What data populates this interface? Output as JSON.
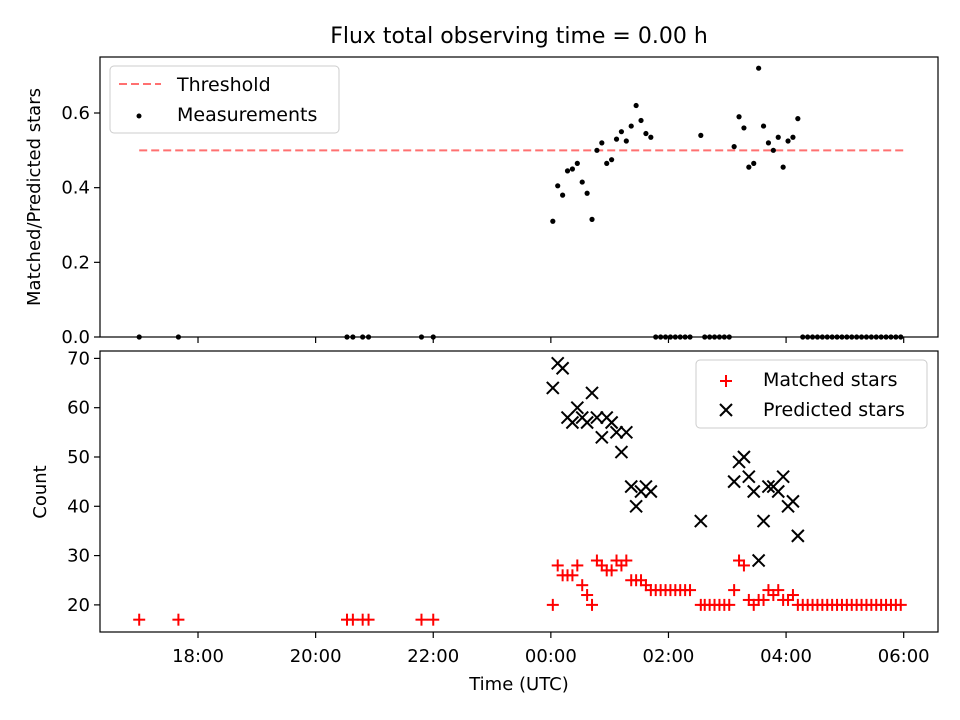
{
  "title": "Flux total observing time = 0.00 h",
  "xlabel": "Time (UTC)",
  "x_tick_labels": [
    "18:00",
    "20:00",
    "22:00",
    "00:00",
    "02:00",
    "04:00",
    "06:00"
  ],
  "chart_data": [
    {
      "type": "scatter",
      "panel": "top",
      "ylabel": "Matched/Predicted stars",
      "xlim": [
        "2023-01-01 16:20",
        "2023-01-02 06:35"
      ],
      "ylim": [
        0,
        0.75
      ],
      "y_ticks": [
        0.0,
        0.2,
        0.4,
        0.6
      ],
      "y_tick_labels": [
        "0.0",
        "0.2",
        "0.4",
        "0.6"
      ],
      "legend": "top-left",
      "threshold": {
        "name": "Threshold",
        "value": 0.5,
        "x_range": [
          "2023-01-01 17:00",
          "2023-01-02 06:00"
        ],
        "color": "#ff7070",
        "style": "dashed"
      },
      "series": [
        {
          "name": "Measurements",
          "color": "#000000",
          "marker": "dot",
          "points": [
            [
              "2023-01-01 17:00",
              0.0
            ],
            [
              "2023-01-01 17:40",
              0.0
            ],
            [
              "2023-01-01 20:32",
              0.0
            ],
            [
              "2023-01-01 20:38",
              0.0
            ],
            [
              "2023-01-01 20:48",
              0.0
            ],
            [
              "2023-01-01 20:54",
              0.0
            ],
            [
              "2023-01-01 21:48",
              0.0
            ],
            [
              "2023-01-01 22:00",
              0.0
            ],
            [
              "2023-01-02 00:02",
              0.31
            ],
            [
              "2023-01-02 00:07",
              0.405
            ],
            [
              "2023-01-02 00:12",
              0.38
            ],
            [
              "2023-01-02 00:17",
              0.445
            ],
            [
              "2023-01-02 00:22",
              0.45
            ],
            [
              "2023-01-02 00:27",
              0.465
            ],
            [
              "2023-01-02 00:32",
              0.415
            ],
            [
              "2023-01-02 00:37",
              0.385
            ],
            [
              "2023-01-02 00:42",
              0.315
            ],
            [
              "2023-01-02 00:47",
              0.5
            ],
            [
              "2023-01-02 00:52",
              0.52
            ],
            [
              "2023-01-02 00:57",
              0.465
            ],
            [
              "2023-01-02 01:02",
              0.475
            ],
            [
              "2023-01-02 01:07",
              0.53
            ],
            [
              "2023-01-02 01:12",
              0.55
            ],
            [
              "2023-01-02 01:17",
              0.525
            ],
            [
              "2023-01-02 01:22",
              0.565
            ],
            [
              "2023-01-02 01:27",
              0.62
            ],
            [
              "2023-01-02 01:32",
              0.58
            ],
            [
              "2023-01-02 01:37",
              0.545
            ],
            [
              "2023-01-02 01:42",
              0.535
            ],
            [
              "2023-01-02 01:47",
              0.0
            ],
            [
              "2023-01-02 01:52",
              0.0
            ],
            [
              "2023-01-02 01:57",
              0.0
            ],
            [
              "2023-01-02 02:02",
              0.0
            ],
            [
              "2023-01-02 02:07",
              0.0
            ],
            [
              "2023-01-02 02:12",
              0.0
            ],
            [
              "2023-01-02 02:17",
              0.0
            ],
            [
              "2023-01-02 02:22",
              0.0
            ],
            [
              "2023-01-02 02:33",
              0.54
            ],
            [
              "2023-01-02 02:37",
              0.0
            ],
            [
              "2023-01-02 02:42",
              0.0
            ],
            [
              "2023-01-02 02:47",
              0.0
            ],
            [
              "2023-01-02 02:52",
              0.0
            ],
            [
              "2023-01-02 02:57",
              0.0
            ],
            [
              "2023-01-02 03:02",
              0.0
            ],
            [
              "2023-01-02 03:07",
              0.51
            ],
            [
              "2023-01-02 03:12",
              0.59
            ],
            [
              "2023-01-02 03:17",
              0.56
            ],
            [
              "2023-01-02 03:22",
              0.455
            ],
            [
              "2023-01-02 03:27",
              0.465
            ],
            [
              "2023-01-02 03:32",
              0.72
            ],
            [
              "2023-01-02 03:37",
              0.565
            ],
            [
              "2023-01-02 03:42",
              0.52
            ],
            [
              "2023-01-02 03:47",
              0.5
            ],
            [
              "2023-01-02 03:52",
              0.535
            ],
            [
              "2023-01-02 03:57",
              0.455
            ],
            [
              "2023-01-02 04:02",
              0.525
            ],
            [
              "2023-01-02 04:07",
              0.535
            ],
            [
              "2023-01-02 04:12",
              0.585
            ],
            [
              "2023-01-02 04:17",
              0.0
            ],
            [
              "2023-01-02 04:22",
              0.0
            ],
            [
              "2023-01-02 04:27",
              0.0
            ],
            [
              "2023-01-02 04:32",
              0.0
            ],
            [
              "2023-01-02 04:37",
              0.0
            ],
            [
              "2023-01-02 04:42",
              0.0
            ],
            [
              "2023-01-02 04:47",
              0.0
            ],
            [
              "2023-01-02 04:52",
              0.0
            ],
            [
              "2023-01-02 04:57",
              0.0
            ],
            [
              "2023-01-02 05:02",
              0.0
            ],
            [
              "2023-01-02 05:07",
              0.0
            ],
            [
              "2023-01-02 05:12",
              0.0
            ],
            [
              "2023-01-02 05:17",
              0.0
            ],
            [
              "2023-01-02 05:22",
              0.0
            ],
            [
              "2023-01-02 05:27",
              0.0
            ],
            [
              "2023-01-02 05:32",
              0.0
            ],
            [
              "2023-01-02 05:37",
              0.0
            ],
            [
              "2023-01-02 05:42",
              0.0
            ],
            [
              "2023-01-02 05:47",
              0.0
            ],
            [
              "2023-01-02 05:52",
              0.0
            ],
            [
              "2023-01-02 05:57",
              0.0
            ]
          ]
        }
      ]
    },
    {
      "type": "scatter",
      "panel": "bottom",
      "ylabel": "Count",
      "xlabel": "Time (UTC)",
      "xlim": [
        "2023-01-01 16:20",
        "2023-01-02 06:35"
      ],
      "ylim": [
        14.5,
        71.5
      ],
      "y_ticks": [
        20,
        30,
        40,
        50,
        60,
        70
      ],
      "y_tick_labels": [
        "20",
        "30",
        "40",
        "50",
        "60",
        "70"
      ],
      "legend": "top-right",
      "series": [
        {
          "name": "Matched stars",
          "color": "#ff0000",
          "marker": "plus",
          "points": [
            [
              "2023-01-01 17:00",
              17
            ],
            [
              "2023-01-01 17:40",
              17
            ],
            [
              "2023-01-01 20:32",
              17
            ],
            [
              "2023-01-01 20:38",
              17
            ],
            [
              "2023-01-01 20:48",
              17
            ],
            [
              "2023-01-01 20:54",
              17
            ],
            [
              "2023-01-01 21:48",
              17
            ],
            [
              "2023-01-01 22:00",
              17
            ],
            [
              "2023-01-02 00:02",
              20
            ],
            [
              "2023-01-02 00:07",
              28
            ],
            [
              "2023-01-02 00:12",
              26
            ],
            [
              "2023-01-02 00:17",
              26
            ],
            [
              "2023-01-02 00:22",
              26
            ],
            [
              "2023-01-02 00:27",
              28
            ],
            [
              "2023-01-02 00:32",
              24
            ],
            [
              "2023-01-02 00:37",
              22
            ],
            [
              "2023-01-02 00:42",
              20
            ],
            [
              "2023-01-02 00:47",
              29
            ],
            [
              "2023-01-02 00:52",
              28
            ],
            [
              "2023-01-02 00:57",
              27
            ],
            [
              "2023-01-02 01:02",
              27
            ],
            [
              "2023-01-02 01:07",
              29
            ],
            [
              "2023-01-02 01:12",
              28
            ],
            [
              "2023-01-02 01:17",
              29
            ],
            [
              "2023-01-02 01:22",
              25
            ],
            [
              "2023-01-02 01:27",
              25
            ],
            [
              "2023-01-02 01:32",
              25
            ],
            [
              "2023-01-02 01:37",
              24
            ],
            [
              "2023-01-02 01:42",
              23
            ],
            [
              "2023-01-02 01:47",
              23
            ],
            [
              "2023-01-02 01:52",
              23
            ],
            [
              "2023-01-02 01:57",
              23
            ],
            [
              "2023-01-02 02:02",
              23
            ],
            [
              "2023-01-02 02:07",
              23
            ],
            [
              "2023-01-02 02:12",
              23
            ],
            [
              "2023-01-02 02:17",
              23
            ],
            [
              "2023-01-02 02:22",
              23
            ],
            [
              "2023-01-02 02:33",
              20
            ],
            [
              "2023-01-02 02:37",
              20
            ],
            [
              "2023-01-02 02:42",
              20
            ],
            [
              "2023-01-02 02:47",
              20
            ],
            [
              "2023-01-02 02:52",
              20
            ],
            [
              "2023-01-02 02:57",
              20
            ],
            [
              "2023-01-02 03:02",
              20
            ],
            [
              "2023-01-02 03:07",
              23
            ],
            [
              "2023-01-02 03:12",
              29
            ],
            [
              "2023-01-02 03:17",
              28
            ],
            [
              "2023-01-02 03:22",
              21
            ],
            [
              "2023-01-02 03:27",
              20
            ],
            [
              "2023-01-02 03:32",
              21
            ],
            [
              "2023-01-02 03:37",
              21
            ],
            [
              "2023-01-02 03:42",
              23
            ],
            [
              "2023-01-02 03:47",
              22
            ],
            [
              "2023-01-02 03:52",
              23
            ],
            [
              "2023-01-02 03:57",
              21
            ],
            [
              "2023-01-02 04:02",
              21
            ],
            [
              "2023-01-02 04:07",
              22
            ],
            [
              "2023-01-02 04:12",
              20
            ],
            [
              "2023-01-02 04:17",
              20
            ],
            [
              "2023-01-02 04:22",
              20
            ],
            [
              "2023-01-02 04:27",
              20
            ],
            [
              "2023-01-02 04:32",
              20
            ],
            [
              "2023-01-02 04:37",
              20
            ],
            [
              "2023-01-02 04:42",
              20
            ],
            [
              "2023-01-02 04:47",
              20
            ],
            [
              "2023-01-02 04:52",
              20
            ],
            [
              "2023-01-02 04:57",
              20
            ],
            [
              "2023-01-02 05:02",
              20
            ],
            [
              "2023-01-02 05:07",
              20
            ],
            [
              "2023-01-02 05:12",
              20
            ],
            [
              "2023-01-02 05:17",
              20
            ],
            [
              "2023-01-02 05:22",
              20
            ],
            [
              "2023-01-02 05:27",
              20
            ],
            [
              "2023-01-02 05:32",
              20
            ],
            [
              "2023-01-02 05:37",
              20
            ],
            [
              "2023-01-02 05:42",
              20
            ],
            [
              "2023-01-02 05:47",
              20
            ],
            [
              "2023-01-02 05:52",
              20
            ],
            [
              "2023-01-02 05:57",
              20
            ]
          ]
        },
        {
          "name": "Predicted stars",
          "color": "#000000",
          "marker": "x",
          "points": [
            [
              "2023-01-02 00:02",
              64
            ],
            [
              "2023-01-02 00:07",
              69
            ],
            [
              "2023-01-02 00:12",
              68
            ],
            [
              "2023-01-02 00:17",
              58
            ],
            [
              "2023-01-02 00:22",
              57
            ],
            [
              "2023-01-02 00:27",
              60
            ],
            [
              "2023-01-02 00:32",
              58
            ],
            [
              "2023-01-02 00:37",
              57
            ],
            [
              "2023-01-02 00:42",
              63
            ],
            [
              "2023-01-02 00:47",
              58
            ],
            [
              "2023-01-02 00:52",
              54
            ],
            [
              "2023-01-02 00:57",
              58
            ],
            [
              "2023-01-02 01:02",
              57
            ],
            [
              "2023-01-02 01:07",
              55
            ],
            [
              "2023-01-02 01:12",
              51
            ],
            [
              "2023-01-02 01:17",
              55
            ],
            [
              "2023-01-02 01:22",
              44
            ],
            [
              "2023-01-02 01:27",
              40
            ],
            [
              "2023-01-02 01:32",
              43
            ],
            [
              "2023-01-02 01:37",
              44
            ],
            [
              "2023-01-02 01:42",
              43
            ],
            [
              "2023-01-02 02:33",
              37
            ],
            [
              "2023-01-02 03:07",
              45
            ],
            [
              "2023-01-02 03:12",
              49
            ],
            [
              "2023-01-02 03:17",
              50
            ],
            [
              "2023-01-02 03:22",
              46
            ],
            [
              "2023-01-02 03:27",
              43
            ],
            [
              "2023-01-02 03:32",
              29
            ],
            [
              "2023-01-02 03:37",
              37
            ],
            [
              "2023-01-02 03:42",
              44
            ],
            [
              "2023-01-02 03:47",
              44
            ],
            [
              "2023-01-02 03:52",
              43
            ],
            [
              "2023-01-02 03:57",
              46
            ],
            [
              "2023-01-02 04:02",
              40
            ],
            [
              "2023-01-02 04:07",
              41
            ],
            [
              "2023-01-02 04:12",
              34
            ]
          ]
        }
      ]
    }
  ]
}
